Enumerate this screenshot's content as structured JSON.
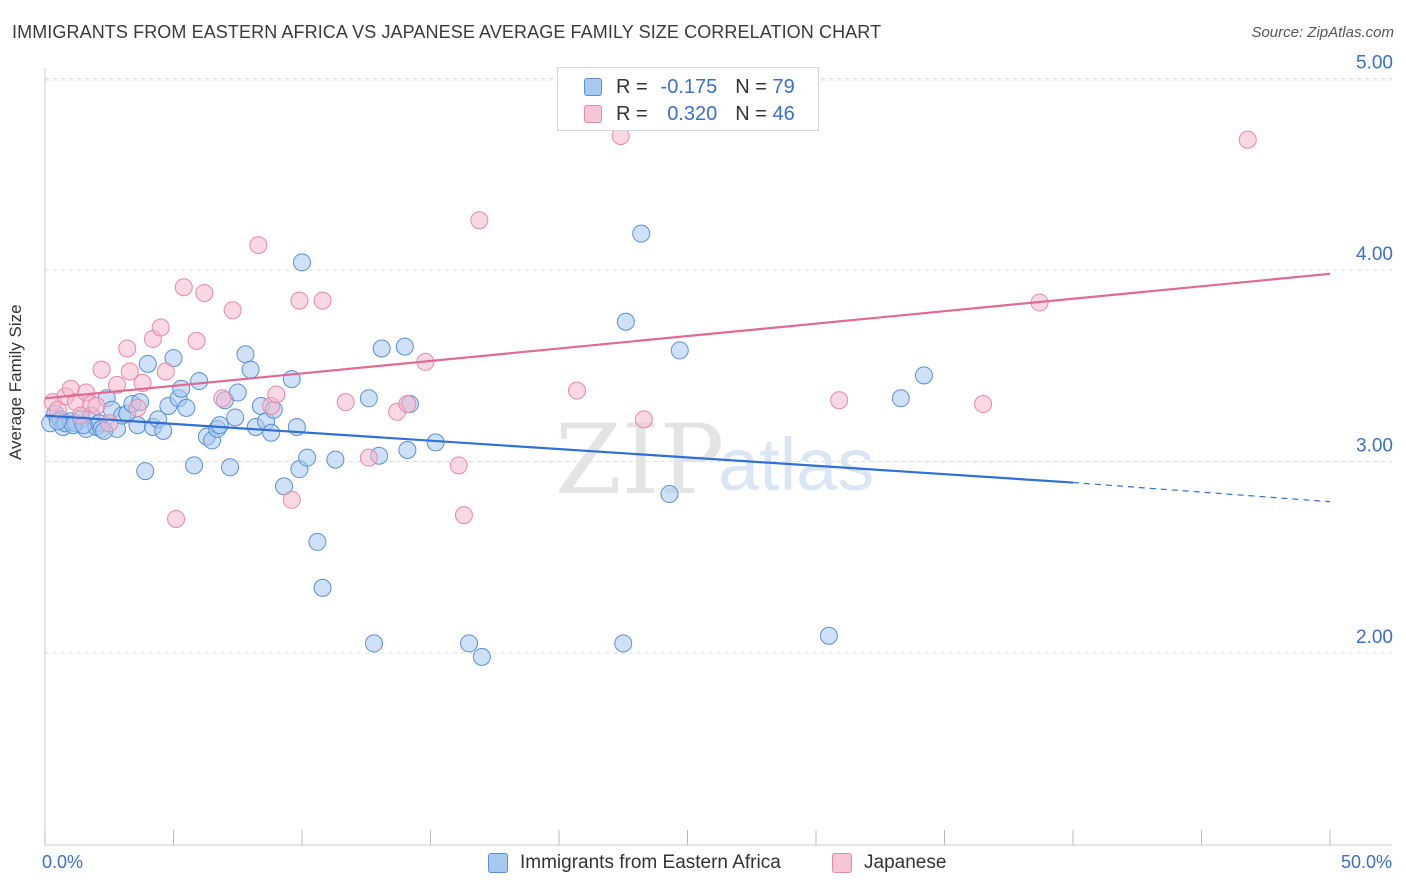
{
  "title": "IMMIGRANTS FROM EASTERN AFRICA VS JAPANESE AVERAGE FAMILY SIZE CORRELATION CHART",
  "source": "Source: ZipAtlas.com",
  "watermark": {
    "zip": "ZIP",
    "atlas": "atlas"
  },
  "legend": {
    "rows": [
      {
        "r_label": "R =",
        "r_value": "-0.175",
        "n_label": "N =",
        "n_value": "79"
      },
      {
        "r_label": "R =",
        "r_value": "0.320",
        "n_label": "N =",
        "n_value": "46"
      }
    ]
  },
  "x_axis": {
    "min_label": "0.0%",
    "max_label": "50.0%"
  },
  "chart_data": {
    "type": "scatter",
    "ylabel": "Average Family Size",
    "xlim": [
      0,
      50
    ],
    "ylim": [
      1.0,
      5.1
    ],
    "yticks": [
      2.0,
      3.0,
      4.0,
      5.0
    ],
    "ytick_labels": [
      "2.00",
      "3.00",
      "4.00",
      "5.00"
    ],
    "grid": true,
    "legend_position": "top-center",
    "colors": {
      "blue_fill": "#a8c8f0",
      "blue_edge": "#5b8fd6",
      "blue_line": "#2f6fd6",
      "pink_fill": "#f6b8cc",
      "pink_edge": "#e58aa8",
      "pink_line": "#e06a94",
      "tick_label": "#3a6fd0"
    },
    "series": [
      {
        "name": "Immigrants from Eastern Africa",
        "color": "blue",
        "trend": {
          "x0": 0,
          "y0": 3.24,
          "x1": 40,
          "y1": 2.89,
          "dash_to_x": 50,
          "dash_y": 2.79
        },
        "points": [
          [
            0.2,
            3.2
          ],
          [
            0.4,
            3.25
          ],
          [
            0.6,
            3.22
          ],
          [
            0.7,
            3.18
          ],
          [
            0.8,
            3.2
          ],
          [
            1.0,
            3.21
          ],
          [
            1.2,
            3.2
          ],
          [
            1.4,
            3.22
          ],
          [
            1.6,
            3.17
          ],
          [
            1.8,
            3.24
          ],
          [
            2.0,
            3.18
          ],
          [
            2.1,
            3.2
          ],
          [
            2.2,
            3.17
          ],
          [
            2.4,
            3.33
          ],
          [
            2.6,
            3.27
          ],
          [
            2.8,
            3.17
          ],
          [
            3.0,
            3.24
          ],
          [
            3.2,
            3.25
          ],
          [
            3.4,
            3.3
          ],
          [
            3.6,
            3.19
          ],
          [
            3.7,
            3.31
          ],
          [
            3.9,
            2.95
          ],
          [
            4.0,
            3.51
          ],
          [
            4.2,
            3.18
          ],
          [
            4.4,
            3.22
          ],
          [
            4.6,
            3.16
          ],
          [
            4.8,
            3.29
          ],
          [
            5.0,
            3.54
          ],
          [
            5.2,
            3.33
          ],
          [
            5.3,
            3.38
          ],
          [
            5.5,
            3.28
          ],
          [
            5.8,
            2.98
          ],
          [
            6.0,
            3.42
          ],
          [
            6.3,
            3.13
          ],
          [
            6.5,
            3.11
          ],
          [
            6.7,
            3.17
          ],
          [
            6.8,
            3.19
          ],
          [
            7.0,
            3.32
          ],
          [
            7.2,
            2.97
          ],
          [
            7.4,
            3.23
          ],
          [
            7.5,
            3.36
          ],
          [
            7.8,
            3.56
          ],
          [
            8.0,
            3.48
          ],
          [
            8.2,
            3.18
          ],
          [
            8.4,
            3.29
          ],
          [
            8.6,
            3.21
          ],
          [
            8.8,
            3.15
          ],
          [
            8.9,
            3.27
          ],
          [
            9.3,
            2.87
          ],
          [
            9.6,
            3.43
          ],
          [
            9.8,
            3.18
          ],
          [
            9.9,
            2.96
          ],
          [
            10.0,
            4.04
          ],
          [
            10.2,
            3.02
          ],
          [
            10.6,
            2.58
          ],
          [
            10.8,
            2.34
          ],
          [
            11.3,
            3.01
          ],
          [
            12.6,
            3.33
          ],
          [
            12.8,
            2.05
          ],
          [
            13.0,
            3.03
          ],
          [
            13.1,
            3.59
          ],
          [
            14.0,
            3.6
          ],
          [
            14.1,
            3.06
          ],
          [
            14.2,
            3.3
          ],
          [
            15.2,
            3.1
          ],
          [
            16.5,
            2.05
          ],
          [
            17.0,
            1.98
          ],
          [
            22.5,
            2.05
          ],
          [
            22.6,
            3.73
          ],
          [
            23.2,
            4.19
          ],
          [
            24.3,
            2.83
          ],
          [
            24.7,
            3.58
          ],
          [
            30.5,
            2.09
          ],
          [
            33.3,
            3.33
          ],
          [
            34.2,
            3.45
          ],
          [
            1.1,
            3.19
          ],
          [
            2.3,
            3.16
          ],
          [
            0.5,
            3.21
          ],
          [
            1.5,
            3.19
          ]
        ]
      },
      {
        "name": "Japanese",
        "color": "pink",
        "trend": {
          "x0": 0,
          "y0": 3.33,
          "x1": 50,
          "y1": 3.98
        },
        "points": [
          [
            0.3,
            3.31
          ],
          [
            0.5,
            3.27
          ],
          [
            0.8,
            3.34
          ],
          [
            1.0,
            3.38
          ],
          [
            1.2,
            3.31
          ],
          [
            1.4,
            3.24
          ],
          [
            1.6,
            3.36
          ],
          [
            1.8,
            3.3
          ],
          [
            2.0,
            3.29
          ],
          [
            2.2,
            3.48
          ],
          [
            2.5,
            3.2
          ],
          [
            2.8,
            3.4
          ],
          [
            3.2,
            3.59
          ],
          [
            3.3,
            3.47
          ],
          [
            3.6,
            3.28
          ],
          [
            3.8,
            3.41
          ],
          [
            4.2,
            3.64
          ],
          [
            4.5,
            3.7
          ],
          [
            4.7,
            3.47
          ],
          [
            5.1,
            2.7
          ],
          [
            5.4,
            3.91
          ],
          [
            5.9,
            3.63
          ],
          [
            6.2,
            3.88
          ],
          [
            6.9,
            3.33
          ],
          [
            7.3,
            3.79
          ],
          [
            8.3,
            4.13
          ],
          [
            8.8,
            3.29
          ],
          [
            9.0,
            3.35
          ],
          [
            9.6,
            2.8
          ],
          [
            9.9,
            3.84
          ],
          [
            10.8,
            3.84
          ],
          [
            11.7,
            3.31
          ],
          [
            12.6,
            3.02
          ],
          [
            13.7,
            3.26
          ],
          [
            14.1,
            3.3
          ],
          [
            14.8,
            3.52
          ],
          [
            16.1,
            2.98
          ],
          [
            16.3,
            2.72
          ],
          [
            16.9,
            4.26
          ],
          [
            20.7,
            3.37
          ],
          [
            22.4,
            4.7
          ],
          [
            23.3,
            3.22
          ],
          [
            30.9,
            3.32
          ],
          [
            36.5,
            3.3
          ],
          [
            38.7,
            3.83
          ],
          [
            46.8,
            4.68
          ]
        ]
      }
    ]
  },
  "bottom_legend": {
    "items": [
      "Immigrants from Eastern Africa",
      "Japanese"
    ]
  }
}
